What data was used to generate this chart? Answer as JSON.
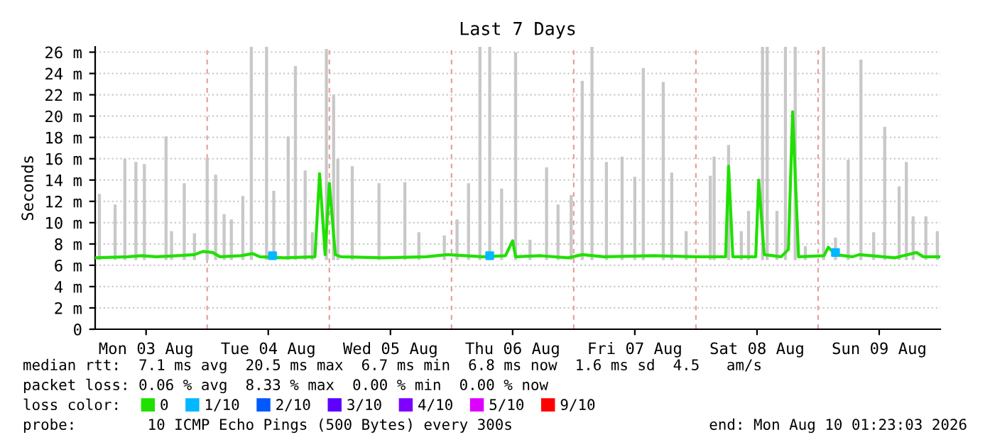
{
  "chart_data": {
    "type": "line",
    "title": "Last 7 Days",
    "ylabel": "Seconds",
    "xlim": [
      "2026-08-03T02:00",
      "2026-08-10T00:00"
    ],
    "xticks": [
      {
        "value": "2026-08-03T12:00",
        "label": "Mon 03 Aug"
      },
      {
        "value": "2026-08-04T12:00",
        "label": "Tue 04 Aug"
      },
      {
        "value": "2026-08-05T12:00",
        "label": "Wed 05 Aug"
      },
      {
        "value": "2026-08-06T12:00",
        "label": "Thu 06 Aug"
      },
      {
        "value": "2026-08-07T12:00",
        "label": "Fri 07 Aug"
      },
      {
        "value": "2026-08-08T12:00",
        "label": "Sat 08 Aug"
      },
      {
        "value": "2026-08-09T12:00",
        "label": "Sun 09 Aug"
      }
    ],
    "ylim": [
      0,
      26.5
    ],
    "yticks": [
      0,
      {
        "value": 2,
        "label": "2 m"
      },
      {
        "value": 4,
        "label": "4 m"
      },
      {
        "value": 6,
        "label": "6 m"
      },
      {
        "value": 8,
        "label": "8 m"
      },
      {
        "value": 10,
        "label": "10 m"
      },
      {
        "value": 12,
        "label": "12 m"
      },
      {
        "value": 14,
        "label": "14 m"
      },
      {
        "value": 16,
        "label": "16 m"
      },
      {
        "value": 18,
        "label": "18 m"
      },
      {
        "value": 20,
        "label": "20 m"
      },
      {
        "value": 22,
        "label": "22 m"
      },
      {
        "value": 24,
        "label": "24 m"
      },
      {
        "value": 26,
        "label": "26 m"
      }
    ],
    "grid": "y",
    "legend": "bottom",
    "legend_title": "loss color:",
    "ref_lines": [
      {
        "axis": "x",
        "value": "2026-08-04T00:00",
        "color": "#e6a0a0",
        "line_style": "dashed"
      },
      {
        "axis": "x",
        "value": "2026-08-05T00:00",
        "color": "#e6a0a0",
        "line_style": "dashed"
      },
      {
        "axis": "x",
        "value": "2026-08-06T00:00",
        "color": "#e6a0a0",
        "line_style": "dashed"
      },
      {
        "axis": "x",
        "value": "2026-08-07T00:00",
        "color": "#e6a0a0",
        "line_style": "dashed"
      },
      {
        "axis": "x",
        "value": "2026-08-08T00:00",
        "color": "#e6a0a0",
        "line_style": "dashed"
      },
      {
        "axis": "x",
        "value": "2026-08-09T00:00",
        "color": "#e6a0a0",
        "line_style": "dashed"
      }
    ],
    "series": [
      {
        "type": "bar",
        "color": "#c8c8c8",
        "x": [
          "2026-08-03T02:50",
          "2026-08-03T05:55",
          "2026-08-03T07:50",
          "2026-08-03T10:00",
          "2026-08-03T11:40",
          "2026-08-03T15:55",
          "2026-08-03T17:00",
          "2026-08-03T19:30",
          "2026-08-03T21:30",
          "2026-08-04T00:00",
          "2026-08-04T01:40",
          "2026-08-04T03:20",
          "2026-08-04T04:45",
          "2026-08-04T07:00",
          "2026-08-04T08:40",
          "2026-08-04T11:40",
          "2026-08-04T13:05",
          "2026-08-04T15:55",
          "2026-08-04T17:20",
          "2026-08-04T19:15",
          "2026-08-04T20:40",
          "2026-08-04T23:25",
          "2026-08-05T00:50",
          "2026-08-05T01:40",
          "2026-08-05T04:30",
          "2026-08-05T09:45",
          "2026-08-05T14:50",
          "2026-08-05T17:35",
          "2026-08-05T22:35",
          "2026-08-06T01:05",
          "2026-08-06T03:20",
          "2026-08-06T05:35",
          "2026-08-06T07:30",
          "2026-08-06T09:50",
          "2026-08-06T12:35",
          "2026-08-06T15:25",
          "2026-08-06T18:40",
          "2026-08-06T20:55",
          "2026-08-06T23:30",
          "2026-08-07T01:40",
          "2026-08-07T03:35",
          "2026-08-07T06:25",
          "2026-08-07T09:30",
          "2026-08-07T12:00",
          "2026-08-07T13:40",
          "2026-08-07T17:35",
          "2026-08-07T19:15",
          "2026-08-07T22:05",
          "2026-08-08T02:50",
          "2026-08-08T03:35",
          "2026-08-08T06:25",
          "2026-08-08T08:55",
          "2026-08-08T10:20",
          "2026-08-08T13:05",
          "2026-08-08T14:00",
          "2026-08-08T15:55",
          "2026-08-08T17:35",
          "2026-08-08T19:30",
          "2026-08-08T21:30",
          "2026-08-09T01:05",
          "2026-08-09T03:25",
          "2026-08-09T05:55",
          "2026-08-09T08:25",
          "2026-08-09T10:55",
          "2026-08-09T13:05",
          "2026-08-09T15:55",
          "2026-08-09T17:20",
          "2026-08-09T18:40",
          "2026-08-09T21:10",
          "2026-08-09T23:25"
        ],
        "base": [
          6.5,
          6.5,
          6.5,
          6.5,
          6.5,
          6.5,
          6.5,
          6.5,
          6.5,
          6.5,
          6.5,
          6.5,
          6.5,
          6.5,
          6.5,
          6.5,
          6.5,
          6.5,
          6.5,
          6.5,
          6.5,
          6.5,
          6.5,
          6.5,
          6.5,
          6.5,
          6.5,
          6.5,
          6.5,
          6.5,
          6.5,
          6.5,
          6.5,
          6.5,
          6.5,
          6.5,
          6.5,
          6.5,
          6.5,
          6.5,
          6.5,
          6.5,
          6.5,
          6.5,
          6.5,
          6.5,
          6.5,
          6.5,
          6.5,
          6.5,
          6.5,
          6.5,
          6.5,
          6.5,
          6.5,
          6.5,
          6.5,
          6.5,
          6.5,
          6.5,
          6.5,
          6.5,
          6.5,
          6.5,
          6.5,
          6.5,
          6.5,
          6.5,
          6.5,
          6.5
        ],
        "values": [
          6.2,
          5.2,
          9.5,
          9.2,
          9.0,
          11.6,
          2.7,
          7.2,
          2.5,
          9.5,
          8.0,
          4.3,
          3.8,
          6.0,
          20.0,
          20.0,
          6.5,
          11.6,
          18.2,
          8.4,
          2.6,
          19.8,
          15.5,
          9.5,
          8.8,
          7.2,
          7.3,
          2.6,
          2.3,
          3.8,
          7.2,
          20.0,
          20.0,
          6.7,
          19.5,
          1.9,
          8.7,
          5.2,
          6.1,
          16.8,
          20.0,
          9.2,
          9.7,
          7.8,
          18.0,
          16.7,
          8.2,
          2.7,
          7.9,
          9.7,
          10.8,
          2.7,
          4.6,
          20.0,
          20.0,
          4.6,
          20.0,
          20.0,
          1.3,
          20.0,
          2.1,
          9.4,
          18.8,
          2.6,
          12.5,
          6.9,
          9.2,
          4.1,
          4.1,
          2.7
        ]
      },
      {
        "name": "0",
        "color": "#20e000",
        "x": [
          "2026-08-03T02:00",
          "2026-08-03T08:25",
          "2026-08-03T11:10",
          "2026-08-03T14:00",
          "2026-08-03T18:10",
          "2026-08-03T21:30",
          "2026-08-03T23:10",
          "2026-08-04T01:05",
          "2026-08-04T02:30",
          "2026-08-04T06:40",
          "2026-08-04T08:55",
          "2026-08-04T10:20",
          "2026-08-04T15:05",
          "2026-08-04T21:10",
          "2026-08-04T22:05",
          "2026-08-04T23:10",
          "2026-08-05T00:00",
          "2026-08-05T01:10",
          "2026-08-05T02:15",
          "2026-08-05T10:35",
          "2026-08-05T19:00",
          "2026-08-05T23:10",
          "2026-08-06T06:10",
          "2026-08-06T10:35",
          "2026-08-06T12:00",
          "2026-08-06T12:35",
          "2026-08-06T17:20",
          "2026-08-06T22:55",
          "2026-08-07T01:40",
          "2026-08-07T05:55",
          "2026-08-07T15:40",
          "2026-08-08T00:00",
          "2026-08-08T05:50",
          "2026-08-08T06:25",
          "2026-08-08T07:15",
          "2026-08-08T11:45",
          "2026-08-08T12:20",
          "2026-08-08T13:25",
          "2026-08-08T16:45",
          "2026-08-08T18:10",
          "2026-08-08T19:00",
          "2026-08-08T20:10",
          "2026-08-09T01:10",
          "2026-08-09T02:00",
          "2026-08-09T03:25",
          "2026-08-09T06:45",
          "2026-08-09T08:05",
          "2026-08-09T15:05",
          "2026-08-09T19:20",
          "2026-08-09T20:40",
          "2026-08-10T00:00"
        ],
        "values": [
          6.7,
          6.8,
          6.9,
          6.8,
          6.9,
          7.0,
          7.3,
          7.2,
          6.8,
          6.9,
          7.1,
          6.8,
          6.7,
          6.8,
          14.6,
          7.0,
          13.7,
          7.0,
          6.8,
          6.7,
          6.8,
          7.0,
          6.8,
          6.9,
          8.3,
          6.8,
          6.9,
          6.7,
          7.0,
          6.8,
          6.9,
          6.8,
          6.8,
          15.3,
          6.8,
          6.8,
          14.0,
          7.0,
          6.8,
          7.5,
          20.4,
          6.8,
          6.9,
          7.7,
          7.0,
          6.8,
          7.0,
          6.7,
          7.2,
          6.8,
          6.8
        ]
      },
      {
        "type": "scatter",
        "name": "1/10",
        "color": "#00b8ff",
        "x": [
          "2026-08-04T12:50",
          "2026-08-06T07:30",
          "2026-08-09T03:25"
        ],
        "values": [
          6.9,
          6.9,
          7.2
        ]
      },
      {
        "type": "scatter",
        "name": "2/10",
        "color": "#0059ff"
      },
      {
        "type": "scatter",
        "name": "3/10",
        "color": "#5e00ff"
      },
      {
        "type": "scatter",
        "name": "4/10",
        "color": "#7e00ff"
      },
      {
        "type": "scatter",
        "name": "5/10",
        "color": "#dd00ff"
      },
      {
        "type": "scatter",
        "name": "9/10",
        "color": "#ff0000"
      }
    ],
    "annotations": [
      "median rtt:  7.1 ms avg  20.5 ms max  6.7 ms min  6.8 ms now  1.6 ms sd  4.5   am/s",
      "packet loss: 0.06 % avg  8.33 % max  0.00 % min  0.00 % now",
      "probe:        10 ICMP Echo Pings (500 Bytes) every 300s",
      "end: Mon Aug 10 01:23:03 2026"
    ]
  }
}
